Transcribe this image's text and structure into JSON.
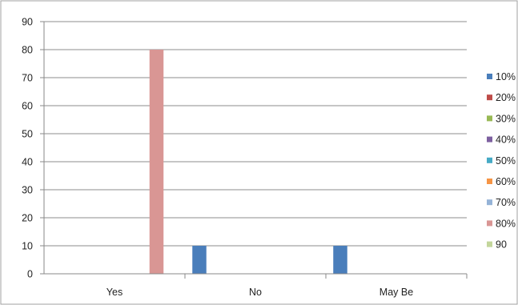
{
  "chart_data": {
    "type": "bar",
    "categories": [
      "Yes",
      "No",
      "May Be"
    ],
    "series": [
      {
        "name": "10%",
        "color": "#4a7ebb",
        "values": [
          0,
          10,
          10
        ]
      },
      {
        "name": "20%",
        "color": "#be4b48",
        "values": [
          0,
          0,
          0
        ]
      },
      {
        "name": "30%",
        "color": "#98b954",
        "values": [
          0,
          0,
          0
        ]
      },
      {
        "name": "40%",
        "color": "#7d60a0",
        "values": [
          0,
          0,
          0
        ]
      },
      {
        "name": "50%",
        "color": "#46aac5",
        "values": [
          0,
          0,
          0
        ]
      },
      {
        "name": "60%",
        "color": "#f69545",
        "values": [
          0,
          0,
          0
        ]
      },
      {
        "name": "70%",
        "color": "#95b3d7",
        "values": [
          0,
          0,
          0
        ]
      },
      {
        "name": "80%",
        "color": "#d99694",
        "values": [
          80,
          0,
          0
        ]
      },
      {
        "name": "90",
        "color": "#c3d69b",
        "values": [
          0,
          0,
          0
        ]
      }
    ],
    "ylim": [
      0,
      90
    ],
    "yticks": [
      0,
      10,
      20,
      30,
      40,
      50,
      60,
      70,
      80,
      90
    ],
    "grid": true,
    "legend": "right"
  }
}
